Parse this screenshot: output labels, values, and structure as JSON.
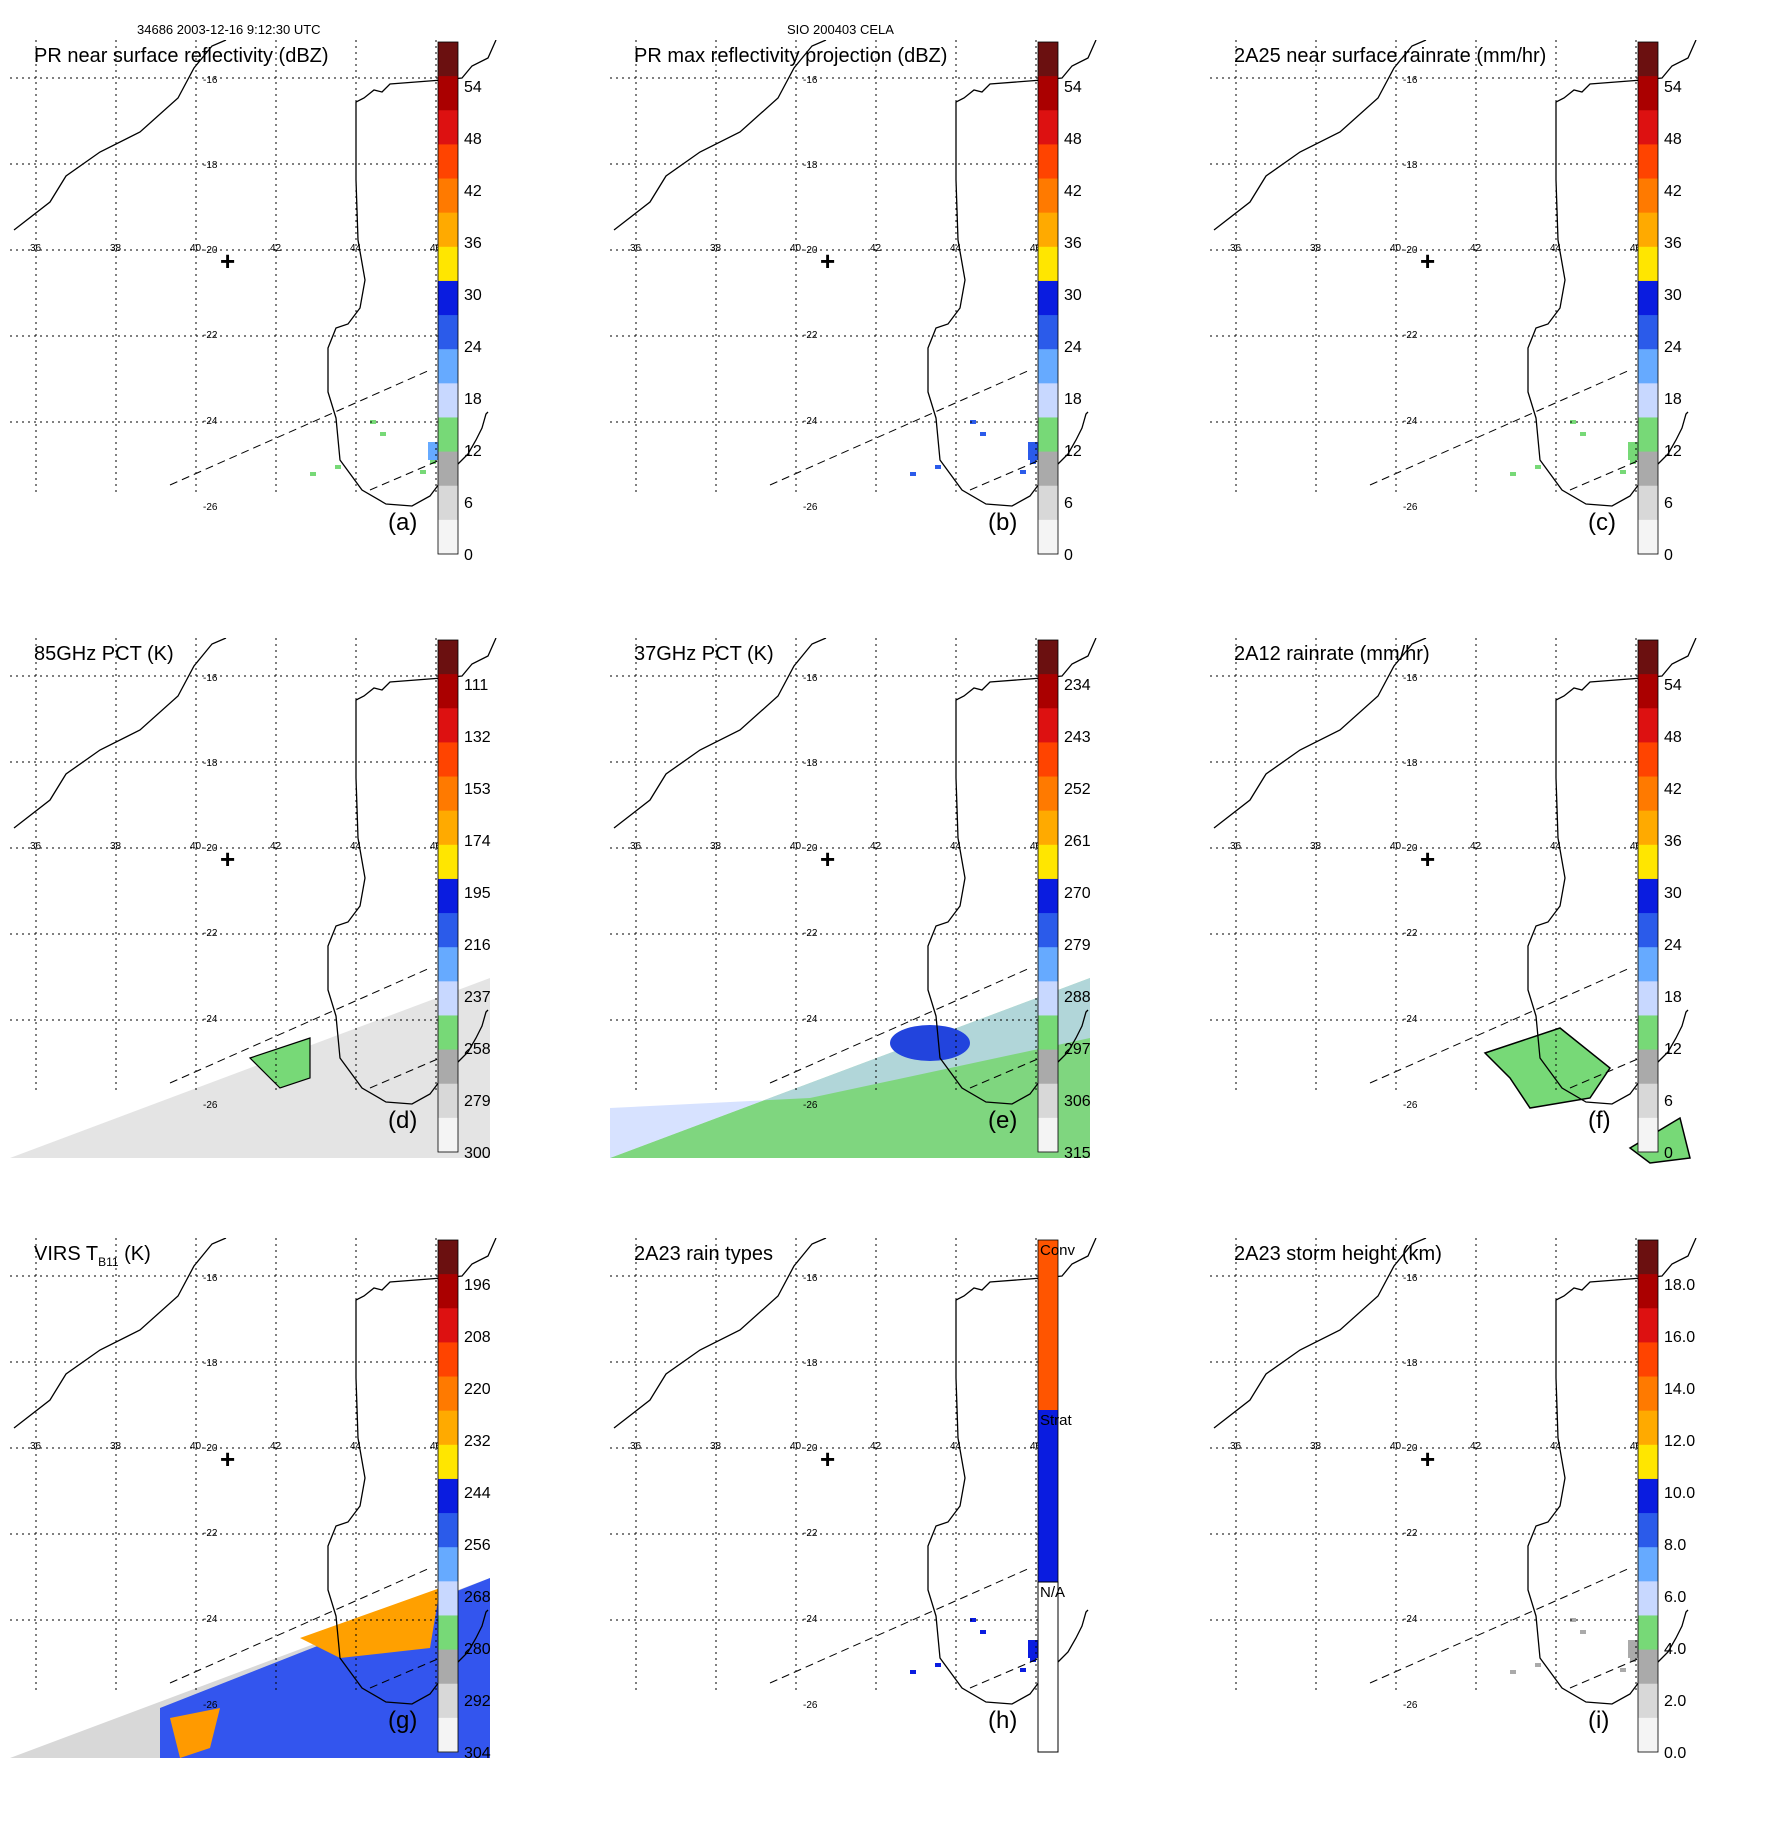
{
  "header": {
    "orbit_info": "34686 2003-12-16 9:12:30 UTC",
    "case_id": "SIO 200403 CELA"
  },
  "map": {
    "lon_labels": [
      "36",
      "38",
      "40",
      "42",
      "44",
      "46"
    ],
    "lat_labels": [
      "-16",
      "-18",
      "-20",
      "-22",
      "-24",
      "-26"
    ]
  },
  "panels": [
    {
      "id": "a",
      "title": "PR near surface reflectivity (dBZ)",
      "label": "(a)",
      "colorbar": [
        "54",
        "48",
        "42",
        "36",
        "30",
        "24",
        "18",
        "12",
        "6",
        "0"
      ]
    },
    {
      "id": "b",
      "title": "PR max reflectivity projection (dBZ)",
      "label": "(b)",
      "colorbar": [
        "54",
        "48",
        "42",
        "36",
        "30",
        "24",
        "18",
        "12",
        "6",
        "0"
      ]
    },
    {
      "id": "c",
      "title": "2A25 near surface rainrate (mm/hr)",
      "label": "(c)",
      "colorbar": [
        "54",
        "48",
        "42",
        "36",
        "30",
        "24",
        "18",
        "12",
        "6",
        "0"
      ]
    },
    {
      "id": "d",
      "title": "85GHz PCT (K)",
      "label": "(d)",
      "colorbar": [
        "111",
        "132",
        "153",
        "174",
        "195",
        "216",
        "237",
        "258",
        "279",
        "300"
      ]
    },
    {
      "id": "e",
      "title": "37GHz PCT (K)",
      "label": "(e)",
      "colorbar": [
        "234",
        "243",
        "252",
        "261",
        "270",
        "279",
        "288",
        "297",
        "306",
        "315"
      ]
    },
    {
      "id": "f",
      "title": "2A12 rainrate (mm/hr)",
      "label": "(f)",
      "colorbar": [
        "54",
        "48",
        "42",
        "36",
        "30",
        "24",
        "18",
        "12",
        "6",
        "0"
      ]
    },
    {
      "id": "g",
      "title": "VIRS T",
      "title_sub": "B11",
      "title_tail": " (K)",
      "label": "(g)",
      "colorbar": [
        "196",
        "208",
        "220",
        "232",
        "244",
        "256",
        "268",
        "280",
        "292",
        "304"
      ]
    },
    {
      "id": "h",
      "title": "2A23 rain types",
      "label": "(h)",
      "categories": [
        "Conv",
        "Strat",
        "N/A"
      ]
    },
    {
      "id": "i",
      "title": "2A23 storm height (km)",
      "label": "(i)",
      "colorbar": [
        "18.0",
        "16.0",
        "14.0",
        "12.0",
        "10.0",
        "8.0",
        "6.0",
        "4.0",
        "2.0",
        "0.0"
      ]
    }
  ],
  "colors": {
    "scale": [
      "#ffffff",
      "#f2f2f2",
      "#cccccc",
      "#aaaaaa",
      "#77d977",
      "#c8d8ff",
      "#66aaff",
      "#2b5bea",
      "#0a1ce0",
      "#ffe600",
      "#ffaa00",
      "#ff7a00",
      "#ff4400",
      "#dd1111",
      "#aa0000",
      "#6b1010"
    ]
  }
}
